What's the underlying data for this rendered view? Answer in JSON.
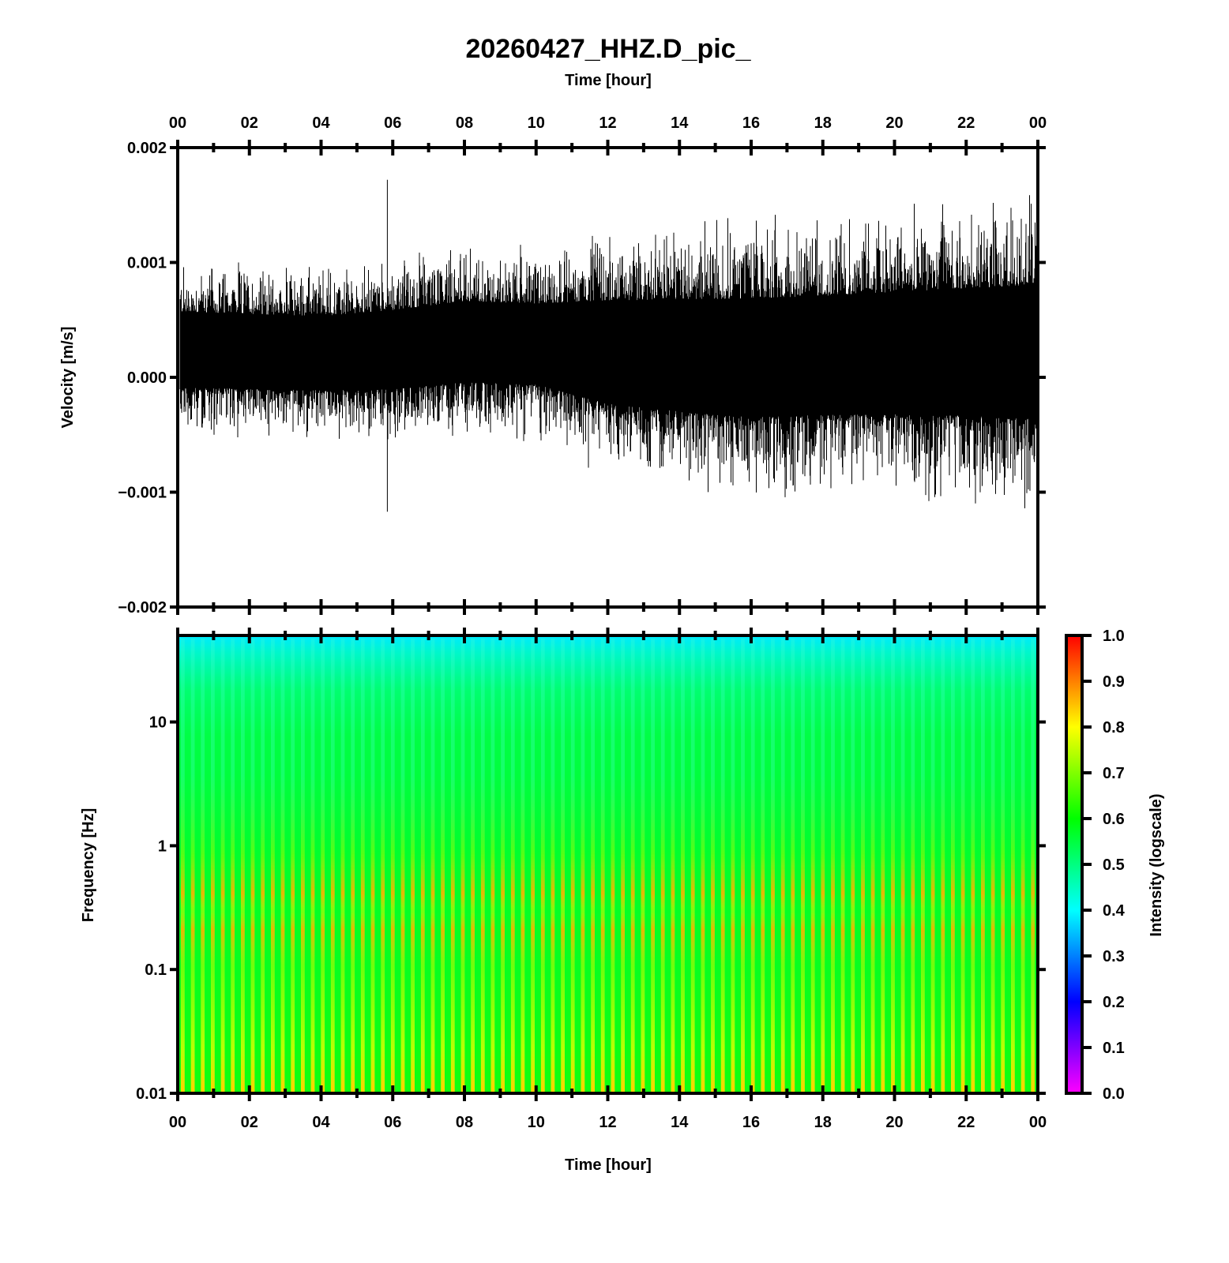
{
  "chart_data": [
    {
      "type": "line",
      "title": "20260427_HHZ.D_pic_",
      "top_xlabel": "Time [hour]",
      "ylabel": "Velocity [m/s]",
      "xlim": [
        0,
        24
      ],
      "ylim": [
        -0.002,
        0.002
      ],
      "x_tick_labels": [
        "00",
        "02",
        "04",
        "06",
        "08",
        "10",
        "12",
        "14",
        "16",
        "18",
        "20",
        "22",
        "00"
      ],
      "y_tick_labels": [
        "0.002",
        "0.001",
        "0.000",
        "−0.001",
        "−0.002"
      ],
      "y_ticks": [
        0.002,
        0.001,
        0.0,
        -0.001,
        -0.002
      ],
      "envelope": {
        "hours": [
          0,
          2,
          4,
          6,
          8,
          10,
          12,
          14,
          16,
          18,
          20,
          22,
          24
        ],
        "upper": [
          0.00068,
          0.00066,
          0.00064,
          0.0007,
          0.00078,
          0.00076,
          0.00082,
          0.00084,
          0.00086,
          0.00088,
          0.00092,
          0.00096,
          0.001
        ],
        "lower": [
          -0.0002,
          -0.00021,
          -0.00022,
          -0.00022,
          -0.00016,
          -0.00018,
          -0.00038,
          -0.00046,
          -0.00052,
          -0.0005,
          -0.0005,
          -0.00052,
          -0.00056
        ]
      },
      "spikes": [
        {
          "hour": 5.85,
          "max": 0.00172,
          "min": -0.00117
        }
      ]
    },
    {
      "type": "heatmap",
      "xlabel": "Time [hour]",
      "ylabel": "Frequency [Hz]",
      "xlim": [
        0,
        24
      ],
      "ylim": [
        0.01,
        50
      ],
      "yscale": "log",
      "x_tick_labels": [
        "00",
        "02",
        "04",
        "06",
        "08",
        "10",
        "12",
        "14",
        "16",
        "18",
        "20",
        "22",
        "00"
      ],
      "y_tick_labels": [
        "10",
        "1",
        "0.1",
        "0.01"
      ],
      "y_ticks": [
        10,
        1,
        0.1,
        0.01
      ],
      "stripe_count": 86,
      "colorbar": {
        "label": "Intensity (logscale)",
        "range": [
          0,
          1
        ],
        "tick_labels": [
          "1.0",
          "0.9",
          "0.8",
          "0.7",
          "0.6",
          "0.5",
          "0.4",
          "0.3",
          "0.2",
          "0.1",
          "0.0"
        ],
        "ticks": [
          1.0,
          0.9,
          0.8,
          0.7,
          0.6,
          0.5,
          0.4,
          0.3,
          0.2,
          0.1,
          0.0
        ],
        "colors": [
          "#ff00ff",
          "#8000ff",
          "#0000ff",
          "#0080ff",
          "#00ffff",
          "#00ff80",
          "#00ff00",
          "#80ff00",
          "#ffff00",
          "#ff8000",
          "#ff0000"
        ]
      },
      "intensity_profile": {
        "freq_hz": [
          50,
          20,
          10,
          3,
          1,
          0.3,
          0.1,
          0.03,
          0.01
        ],
        "background": [
          0.42,
          0.5,
          0.58,
          0.58,
          0.6,
          0.62,
          0.62,
          0.62,
          0.62
        ],
        "stripe_peak": [
          0.45,
          0.55,
          0.6,
          0.62,
          0.7,
          0.85,
          0.78,
          0.75,
          0.82
        ]
      }
    }
  ]
}
